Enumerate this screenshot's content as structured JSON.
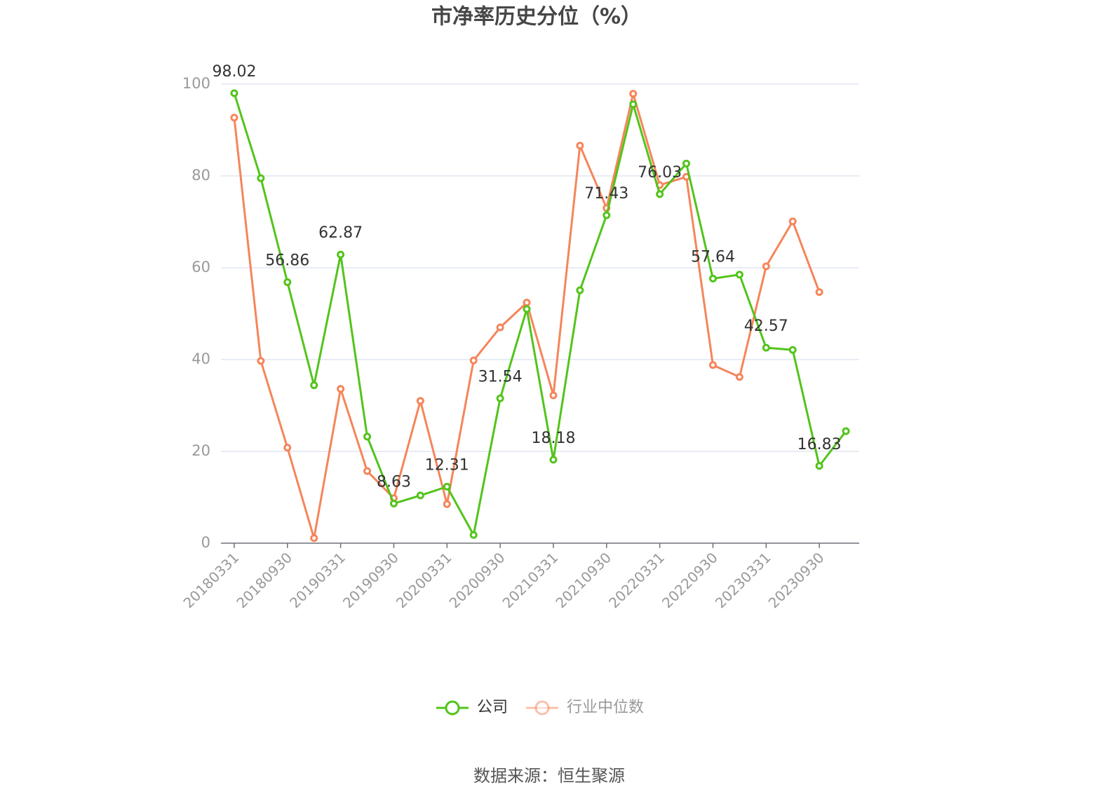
{
  "chart_data": {
    "type": "line",
    "title": "市净率历史分位（%）",
    "categories": [
      "20180331",
      null,
      "20180930",
      null,
      "20190331",
      null,
      "20190930",
      null,
      "20200331",
      null,
      "20200930",
      null,
      "20210331",
      null,
      "20210930",
      null,
      "20220331",
      null,
      "20220930",
      null,
      "20230331",
      null,
      "20230930",
      null
    ],
    "series": [
      {
        "name": "公司",
        "color": "#52c41a",
        "label_interval": 2,
        "values": [
          98.02,
          79.5,
          56.86,
          34.4,
          62.87,
          23.2,
          8.63,
          10.4,
          12.31,
          1.8,
          31.54,
          51.0,
          18.18,
          55.1,
          71.43,
          95.6,
          76.03,
          82.7,
          57.64,
          58.5,
          42.57,
          42.1,
          16.83,
          24.4
        ]
      },
      {
        "name": "行业中位数",
        "color": "#f5855a",
        "values": [
          92.7,
          39.7,
          20.8,
          1.1,
          33.6,
          15.7,
          9.8,
          31.0,
          8.5,
          39.8,
          47.0,
          52.4,
          32.2,
          86.6,
          73.0,
          97.9,
          78.0,
          79.8,
          38.8,
          36.2,
          60.3,
          70.1,
          54.7,
          null
        ]
      }
    ],
    "ylim": [
      0,
      100
    ],
    "yticks": [
      0,
      20,
      40,
      60,
      80,
      100
    ],
    "grid": true,
    "source": "数据来源：恒生聚源"
  }
}
